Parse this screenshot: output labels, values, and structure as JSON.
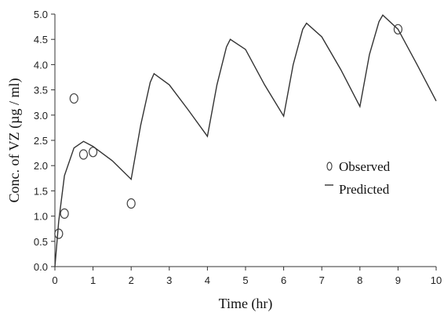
{
  "chart_data": {
    "type": "line",
    "title": "",
    "xlabel": "Time (hr)",
    "ylabel": "Conc. of VZ (µg / ml)",
    "xlim": [
      0,
      10
    ],
    "ylim": [
      0.0,
      5.0
    ],
    "x_ticks": [
      "0",
      "1",
      "2",
      "3",
      "4",
      "5",
      "6",
      "7",
      "8",
      "9",
      "10"
    ],
    "y_ticks": [
      "0.0",
      "0.5",
      "1.0",
      "1.5",
      "2.0",
      "2.5",
      "3.0",
      "3.5",
      "4.0",
      "4.5",
      "5.0"
    ],
    "grid": false,
    "legend_position": "right",
    "series": [
      {
        "name": "Observed",
        "kind": "scatter",
        "marker": "open-ellipse",
        "color": "#444444",
        "x": [
          0.1,
          0.25,
          0.5,
          0.75,
          1.0,
          2.0,
          9.0
        ],
        "y": [
          0.65,
          1.05,
          3.33,
          2.22,
          2.27,
          1.25,
          4.7
        ]
      },
      {
        "name": "Predicted",
        "kind": "line",
        "color": "#333333",
        "x": [
          0,
          0.1,
          0.25,
          0.5,
          0.75,
          1.0,
          1.5,
          2.0,
          2.25,
          2.5,
          2.6,
          3.0,
          3.5,
          4.0,
          4.25,
          4.5,
          4.6,
          5.0,
          5.5,
          6.0,
          6.25,
          6.5,
          6.6,
          7.0,
          7.5,
          8.0,
          8.25,
          8.5,
          8.6,
          9.0,
          9.5,
          10.0
        ],
        "y": [
          0.0,
          0.9,
          1.8,
          2.35,
          2.48,
          2.38,
          2.1,
          1.73,
          2.8,
          3.65,
          3.82,
          3.6,
          3.1,
          2.58,
          3.6,
          4.35,
          4.5,
          4.3,
          3.6,
          2.98,
          4.0,
          4.7,
          4.82,
          4.55,
          3.9,
          3.17,
          4.2,
          4.85,
          4.98,
          4.7,
          4.0,
          3.28
        ]
      }
    ]
  }
}
